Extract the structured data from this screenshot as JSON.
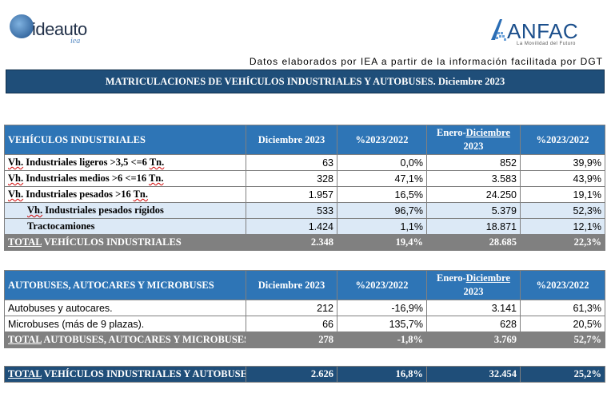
{
  "brand_left": {
    "name": "ideauto",
    "sub": "iea"
  },
  "brand_right": {
    "name": "ANFAC",
    "tagline": "La Movilidad del Futuro"
  },
  "source_note": "Datos elaborados por IEA a partir de la información facilitada por DGT",
  "title": "MATRICULACIONES DE VEHÍCULOS INDUSTRIALES Y AUTOBUSES.  Diciembre 2023",
  "colors": {
    "header_blue": "#2e75b6",
    "dark_blue": "#1f4e79",
    "total_gray": "#808080",
    "sub_row": "#dce9f6"
  },
  "industrial": {
    "headers": {
      "label": "VEHÍCULOS INDUSTRIALES",
      "month": "Diciembre 2023",
      "pct": "%2023/2022",
      "ytd_pre": "Enero-",
      "ytd_month": "Diciembre",
      "ytd_year": "2023",
      "pct_ytd": "%2023/2022"
    },
    "rows": [
      {
        "pre": "Vh.",
        "label": " Industriales ligeros >3,5 <=6 ",
        "post": "Tn.",
        "month": "63",
        "pct": "0,0%",
        "ytd": "852",
        "pct_ytd": "39,9%"
      },
      {
        "pre": "Vh.",
        "label": " Industriales medios >6  <=16 ",
        "post": "Tn.",
        "month": "328",
        "pct": "47,1%",
        "ytd": "3.583",
        "pct_ytd": "43,9%"
      },
      {
        "pre": "Vh.",
        "label": " Industriales  pesados >16 ",
        "post": "Tn.",
        "month": "1.957",
        "pct": "16,5%",
        "ytd": "24.250",
        "pct_ytd": "19,1%"
      },
      {
        "pre": "Vh.",
        "label": " Industriales pesados rígidos",
        "post": "",
        "month": "533",
        "pct": "96,7%",
        "ytd": "5.379",
        "pct_ytd": "52,3%"
      },
      {
        "pre": "",
        "label": "Tractocamiones",
        "post": "",
        "month": "1.424",
        "pct": "1,1%",
        "ytd": "18.871",
        "pct_ytd": "12,1%"
      }
    ],
    "total": {
      "pre": "TOTAL",
      "label": " VEHÍCULOS INDUSTRIALES",
      "month": "2.348",
      "pct": "19,4%",
      "ytd": "28.685",
      "pct_ytd": "22,3%"
    }
  },
  "buses": {
    "headers": {
      "label": "AUTOBUSES, AUTOCARES Y MICROBUSES",
      "month": "Diciembre 2023",
      "pct": "%2023/2022",
      "ytd_pre": "Enero-",
      "ytd_month": "Diciembre",
      "ytd_year": "2023",
      "pct_ytd": "%2023/2022"
    },
    "rows": [
      {
        "label": "Autobuses y autocares.",
        "month": "212",
        "pct": "-16,9%",
        "ytd": "3.141",
        "pct_ytd": "61,3%"
      },
      {
        "label": "Microbuses (más de 9 plazas).",
        "month": "66",
        "pct": "135,7%",
        "ytd": "628",
        "pct_ytd": "20,5%"
      }
    ],
    "total": {
      "pre": "TOTAL",
      "label": " AUTOBUSES, AUTOCARES Y MICROBUSES",
      "month": "278",
      "pct": "-1,8%",
      "ytd": "3.769",
      "pct_ytd": "52,7%"
    }
  },
  "grand_total": {
    "pre": "TOTAL",
    "label": " VEHÍCULOS INDUSTRIALES Y AUTOBUSES",
    "month": "2.626",
    "pct": "16,8%",
    "ytd": "32.454",
    "pct_ytd": "25,2%"
  }
}
